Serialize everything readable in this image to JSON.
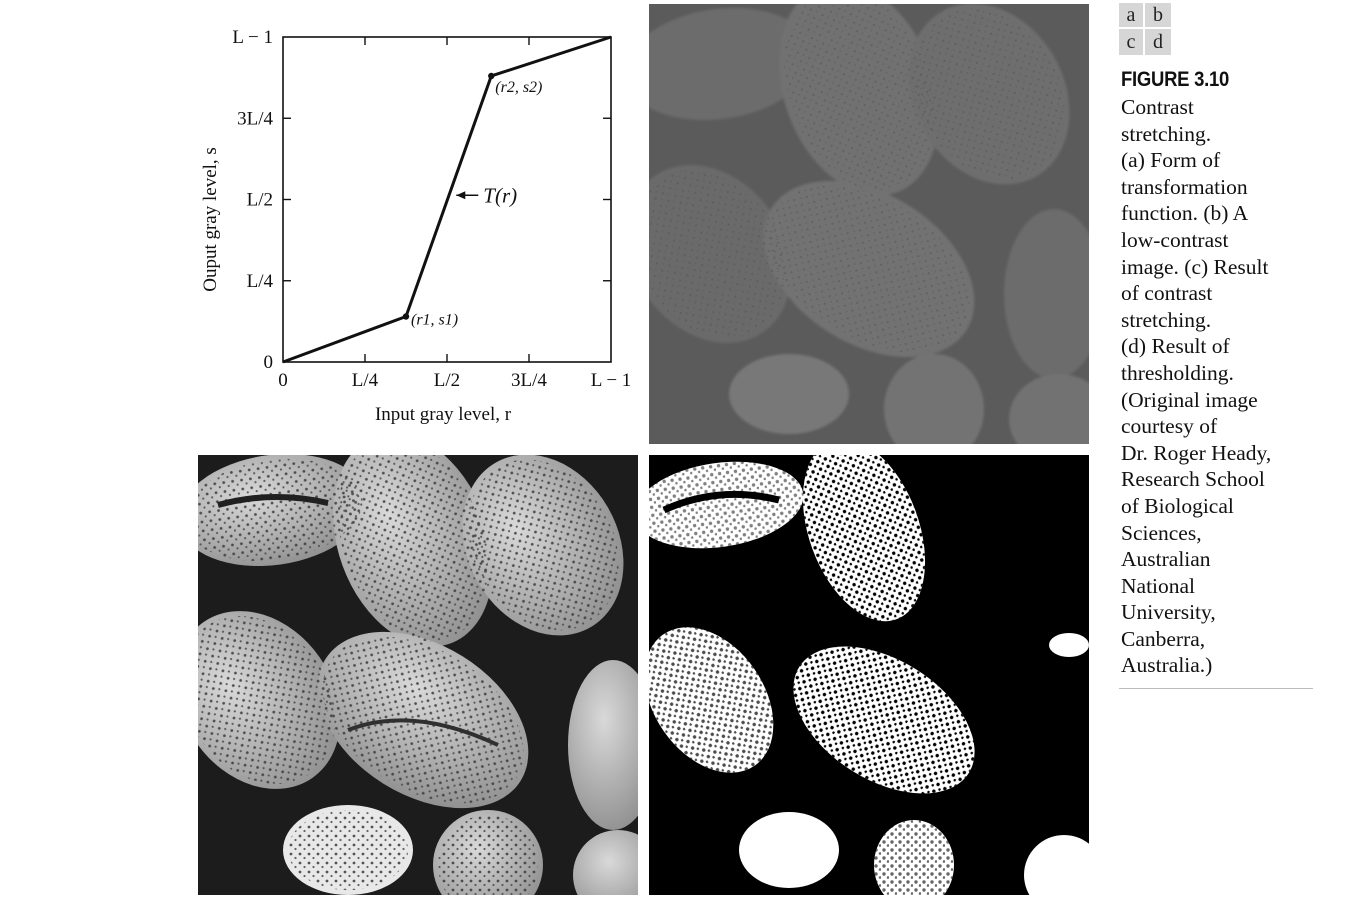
{
  "figure": {
    "label": "FIGURE 3.10",
    "panel_key": [
      "a",
      "b",
      "c",
      "d"
    ],
    "caption_lines": [
      "Contrast",
      "stretching.",
      "(a) Form of",
      "transformation",
      "function. (b) A",
      "low-contrast",
      "image. (c) Result",
      "of contrast",
      "stretching.",
      "(d) Result of",
      "thresholding.",
      "(Original image",
      "courtesy of",
      "Dr. Roger Heady,",
      "Research School",
      "of Biological",
      "Sciences,",
      "Australian",
      "National",
      "University,",
      "Canberra,",
      "Australia.)"
    ]
  },
  "chart_data": {
    "type": "line",
    "xlabel": "Input gray level, r",
    "ylabel": "Ouput gray level, s",
    "x_ticks": [
      "0",
      "L/4",
      "L/2",
      "3L/4",
      "L − 1"
    ],
    "y_ticks": [
      "0",
      "L/4",
      "L/2",
      "3L/4",
      "L − 1"
    ],
    "xlim": [
      0,
      1
    ],
    "ylim": [
      0,
      1
    ],
    "units_note": "values expressed as fraction of L − 1",
    "series": [
      {
        "values_x": [
          0,
          0.375,
          0.635,
          1
        ],
        "values_y": [
          0,
          0.14,
          0.88,
          1
        ]
      }
    ],
    "annotations": [
      {
        "text": "(r1, s1)",
        "x": 0.375,
        "y": 0.14
      },
      {
        "text": "(r2, s2)",
        "x": 0.635,
        "y": 0.88
      },
      {
        "text": "T(r)",
        "x": 0.51,
        "y": 0.51
      }
    ],
    "grid": false
  },
  "images": {
    "b": {
      "tone": "low-contrast",
      "background": "#5a5a5a"
    },
    "c": {
      "tone": "contrast-stretched",
      "background": "#1a1a1a"
    },
    "d": {
      "tone": "thresholded",
      "background": "#000000"
    }
  }
}
